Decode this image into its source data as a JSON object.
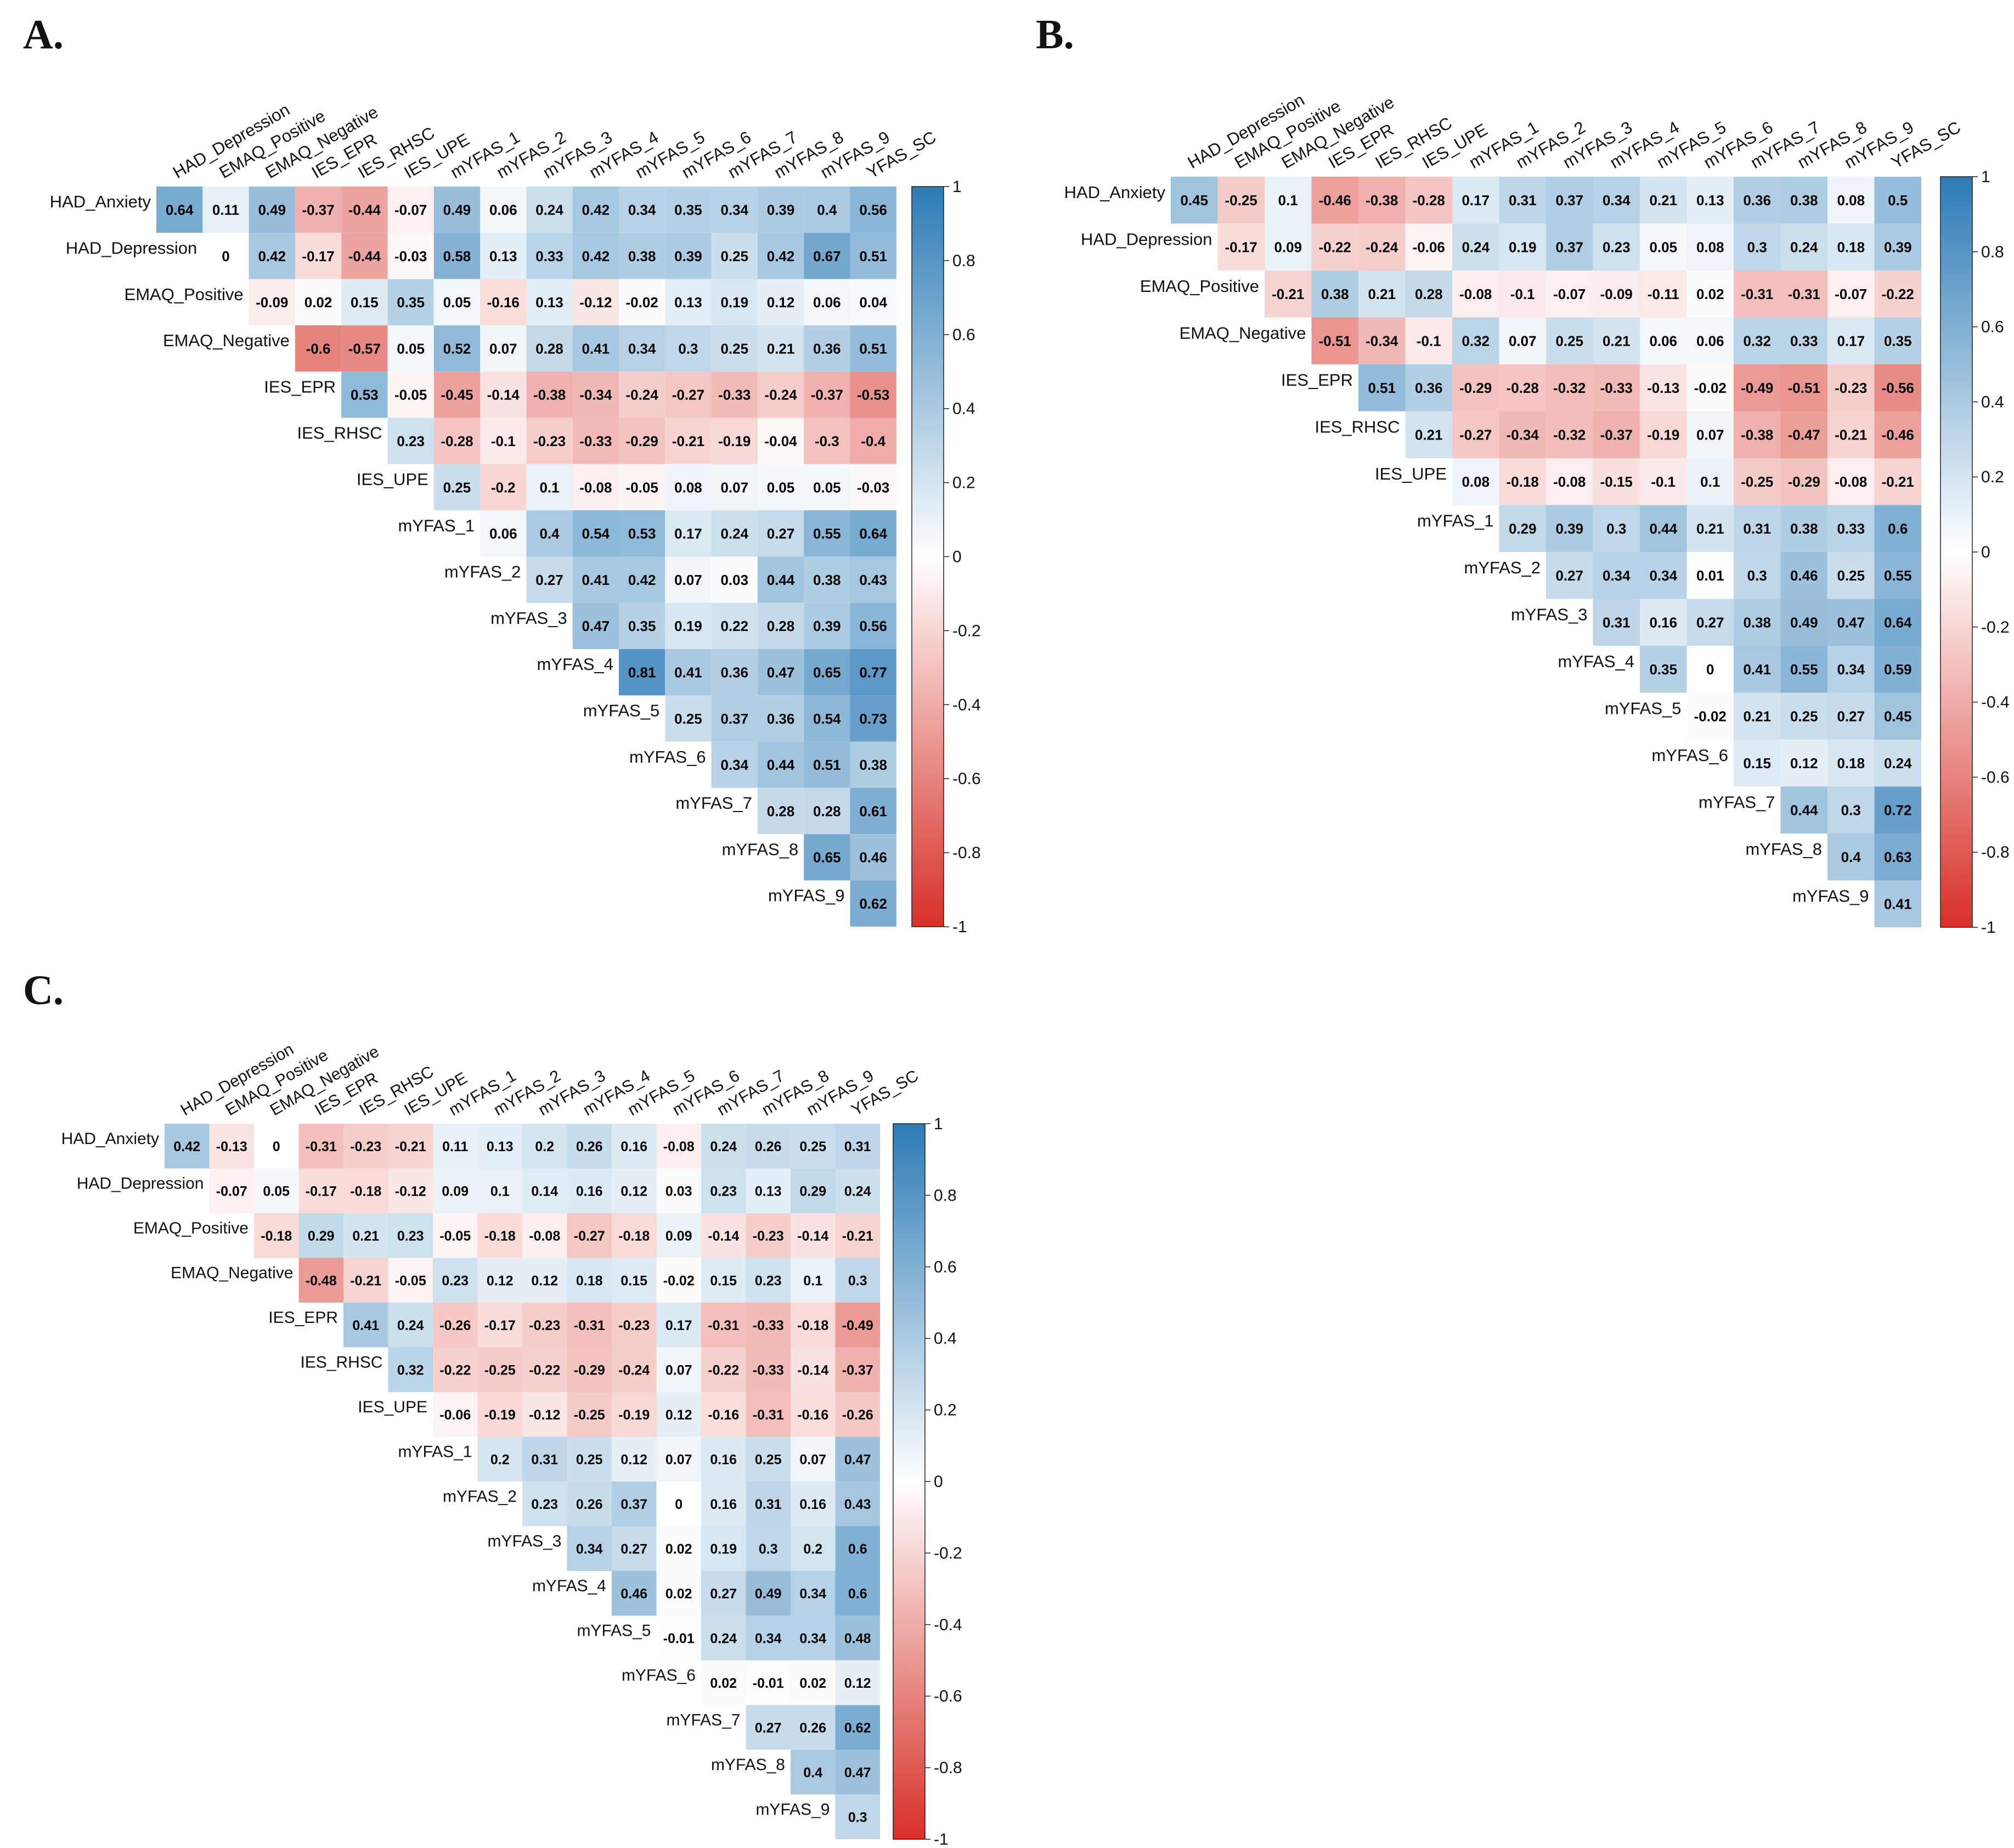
{
  "panels": [
    "A.",
    "B.",
    "C."
  ],
  "colors": {
    "negative": "#d73027",
    "neutral": "#ffffff",
    "positive": "#2c7bb6",
    "text": "#000000"
  },
  "chart_data": [
    {
      "type": "heatmap",
      "panel": "A.",
      "title": "",
      "row_labels": [
        "HAD_Anxiety",
        "HAD_Depression",
        "EMAQ_Positive",
        "EMAQ_Negative",
        "IES_EPR",
        "IES_RHSC",
        "IES_UPE",
        "mYFAS_1",
        "mYFAS_2",
        "mYFAS_3",
        "mYFAS_4",
        "mYFAS_5",
        "mYFAS_6",
        "mYFAS_7",
        "mYFAS_8",
        "mYFAS_9"
      ],
      "col_labels": [
        "HAD_Depression",
        "EMAQ_Positive",
        "EMAQ_Negative",
        "IES_EPR",
        "IES_RHSC",
        "IES_UPE",
        "mYFAS_1",
        "mYFAS_2",
        "mYFAS_3",
        "mYFAS_4",
        "mYFAS_5",
        "mYFAS_6",
        "mYFAS_7",
        "mYFAS_8",
        "mYFAS_9",
        "YFAS_SC"
      ],
      "values": [
        [
          0.64,
          0.11,
          0.49,
          -0.37,
          -0.44,
          -0.07,
          0.49,
          0.06,
          0.24,
          0.42,
          0.34,
          0.35,
          0.34,
          0.39,
          0.4,
          0.56
        ],
        [
          0,
          0.42,
          -0.17,
          -0.44,
          -0.03,
          0.58,
          0.13,
          0.33,
          0.42,
          0.38,
          0.39,
          0.25,
          0.42,
          0.67,
          0.51
        ],
        [
          -0.09,
          0.02,
          0.15,
          0.35,
          0.05,
          -0.16,
          0.13,
          -0.12,
          -0.02,
          0.13,
          0.19,
          0.12,
          0.06,
          0.04
        ],
        [
          -0.6,
          -0.57,
          0.05,
          0.52,
          0.07,
          0.28,
          0.41,
          0.34,
          0.3,
          0.25,
          0.21,
          0.36,
          0.51
        ],
        [
          0.53,
          -0.05,
          -0.45,
          -0.14,
          -0.38,
          -0.34,
          -0.24,
          -0.27,
          -0.33,
          -0.24,
          -0.37,
          -0.53
        ],
        [
          0.23,
          -0.28,
          -0.1,
          -0.23,
          -0.33,
          -0.29,
          -0.21,
          -0.19,
          -0.04,
          -0.3,
          -0.4
        ],
        [
          0.25,
          -0.2,
          0.1,
          -0.08,
          -0.05,
          0.08,
          0.07,
          0.05,
          0.05,
          -0.03
        ],
        [
          0.06,
          0.4,
          0.54,
          0.53,
          0.17,
          0.24,
          0.27,
          0.55,
          0.64
        ],
        [
          0.27,
          0.41,
          0.42,
          0.07,
          0.03,
          0.44,
          0.38,
          0.43
        ],
        [
          0.47,
          0.35,
          0.19,
          0.22,
          0.28,
          0.39,
          0.56
        ],
        [
          0.81,
          0.41,
          0.36,
          0.47,
          0.65,
          0.77
        ],
        [
          0.25,
          0.37,
          0.36,
          0.54,
          0.73
        ],
        [
          0.34,
          0.44,
          0.51,
          0.38
        ],
        [
          0.28,
          0.28,
          0.61
        ],
        [
          0.65,
          0.46
        ],
        [
          0.62
        ]
      ],
      "colorbar": {
        "range": [
          -1,
          1
        ],
        "ticks": [
          "1",
          "0.8",
          "0.6",
          "0.4",
          "0.2",
          "0",
          "-0.2",
          "-0.4",
          "-0.6",
          "-0.8",
          "-1"
        ]
      }
    },
    {
      "type": "heatmap",
      "panel": "B.",
      "title": "",
      "row_labels": [
        "HAD_Anxiety",
        "HAD_Depression",
        "EMAQ_Positive",
        "EMAQ_Negative",
        "IES_EPR",
        "IES_RHSC",
        "IES_UPE",
        "mYFAS_1",
        "mYFAS_2",
        "mYFAS_3",
        "mYFAS_4",
        "mYFAS_5",
        "mYFAS_6",
        "mYFAS_7",
        "mYFAS_8",
        "mYFAS_9"
      ],
      "col_labels": [
        "HAD_Depression",
        "EMAQ_Positive",
        "EMAQ_Negative",
        "IES_EPR",
        "IES_RHSC",
        "IES_UPE",
        "mYFAS_1",
        "mYFAS_2",
        "mYFAS_3",
        "mYFAS_4",
        "mYFAS_5",
        "mYFAS_6",
        "mYFAS_7",
        "mYFAS_8",
        "mYFAS_9",
        "YFAS_SC"
      ],
      "values": [
        [
          0.45,
          -0.25,
          0.1,
          -0.46,
          -0.38,
          -0.28,
          0.17,
          0.31,
          0.37,
          0.34,
          0.21,
          0.13,
          0.36,
          0.38,
          0.08,
          0.5
        ],
        [
          -0.17,
          0.09,
          -0.22,
          -0.24,
          -0.06,
          0.24,
          0.19,
          0.37,
          0.23,
          0.05,
          0.08,
          0.3,
          0.24,
          0.18,
          0.39
        ],
        [
          -0.21,
          0.38,
          0.21,
          0.28,
          -0.08,
          -0.1,
          -0.07,
          -0.09,
          -0.11,
          0.02,
          -0.31,
          -0.31,
          -0.07,
          -0.22
        ],
        [
          -0.51,
          -0.34,
          -0.1,
          0.32,
          0.07,
          0.25,
          0.21,
          0.06,
          0.06,
          0.32,
          0.33,
          0.17,
          0.35
        ],
        [
          0.51,
          0.36,
          -0.29,
          -0.28,
          -0.32,
          -0.33,
          -0.13,
          -0.02,
          -0.49,
          -0.51,
          -0.23,
          -0.56
        ],
        [
          0.21,
          -0.27,
          -0.34,
          -0.32,
          -0.37,
          -0.19,
          0.07,
          -0.38,
          -0.47,
          -0.21,
          -0.46
        ],
        [
          0.08,
          -0.18,
          -0.08,
          -0.15,
          -0.1,
          0.1,
          -0.25,
          -0.29,
          -0.08,
          -0.21
        ],
        [
          0.29,
          0.39,
          0.3,
          0.44,
          0.21,
          0.31,
          0.38,
          0.33,
          0.6
        ],
        [
          0.27,
          0.34,
          0.34,
          0.01,
          0.3,
          0.46,
          0.25,
          0.55
        ],
        [
          0.31,
          0.16,
          0.27,
          0.38,
          0.49,
          0.47,
          0.64
        ],
        [
          0.35,
          0,
          0.41,
          0.55,
          0.34,
          0.59
        ],
        [
          -0.02,
          0.21,
          0.25,
          0.27,
          0.45
        ],
        [
          0.15,
          0.12,
          0.18,
          0.24
        ],
        [
          0.44,
          0.3,
          0.72
        ],
        [
          0.4,
          0.63
        ],
        [
          0.41
        ]
      ],
      "colorbar": {
        "range": [
          -1,
          1
        ],
        "ticks": [
          "1",
          "0.8",
          "0.6",
          "0.4",
          "0.2",
          "0",
          "-0.2",
          "-0.4",
          "-0.6",
          "-0.8",
          "-1"
        ]
      }
    },
    {
      "type": "heatmap",
      "panel": "C.",
      "title": "",
      "row_labels": [
        "HAD_Anxiety",
        "HAD_Depression",
        "EMAQ_Positive",
        "EMAQ_Negative",
        "IES_EPR",
        "IES_RHSC",
        "IES_UPE",
        "mYFAS_1",
        "mYFAS_2",
        "mYFAS_3",
        "mYFAS_4",
        "mYFAS_5",
        "mYFAS_6",
        "mYFAS_7",
        "mYFAS_8",
        "mYFAS_9"
      ],
      "col_labels": [
        "HAD_Depression",
        "EMAQ_Positive",
        "EMAQ_Negative",
        "IES_EPR",
        "IES_RHSC",
        "IES_UPE",
        "mYFAS_1",
        "mYFAS_2",
        "mYFAS_3",
        "mYFAS_4",
        "mYFAS_5",
        "mYFAS_6",
        "mYFAS_7",
        "mYFAS_8",
        "mYFAS_9",
        "YFAS_SC"
      ],
      "values": [
        [
          0.42,
          -0.13,
          0,
          -0.31,
          -0.23,
          -0.21,
          0.11,
          0.13,
          0.2,
          0.26,
          0.16,
          -0.08,
          0.24,
          0.26,
          0.25,
          0.31
        ],
        [
          -0.07,
          0.05,
          -0.17,
          -0.18,
          -0.12,
          0.09,
          0.1,
          0.14,
          0.16,
          0.12,
          0.03,
          0.23,
          0.13,
          0.29,
          0.24
        ],
        [
          -0.18,
          0.29,
          0.21,
          0.23,
          -0.05,
          -0.18,
          -0.08,
          -0.27,
          -0.18,
          0.09,
          -0.14,
          -0.23,
          -0.14,
          -0.21
        ],
        [
          -0.48,
          -0.21,
          -0.05,
          0.23,
          0.12,
          0.12,
          0.18,
          0.15,
          -0.02,
          0.15,
          0.23,
          0.1,
          0.3
        ],
        [
          0.41,
          0.24,
          -0.26,
          -0.17,
          -0.23,
          -0.31,
          -0.23,
          0.17,
          -0.31,
          -0.33,
          -0.18,
          -0.49
        ],
        [
          0.32,
          -0.22,
          -0.25,
          -0.22,
          -0.29,
          -0.24,
          0.07,
          -0.22,
          -0.33,
          -0.14,
          -0.37
        ],
        [
          -0.06,
          -0.19,
          -0.12,
          -0.25,
          -0.19,
          0.12,
          -0.16,
          -0.31,
          -0.16,
          -0.26
        ],
        [
          0.2,
          0.31,
          0.25,
          0.12,
          0.07,
          0.16,
          0.25,
          0.07,
          0.47
        ],
        [
          0.23,
          0.26,
          0.37,
          0,
          0.16,
          0.31,
          0.16,
          0.43
        ],
        [
          0.34,
          0.27,
          0.02,
          0.19,
          0.3,
          0.2,
          0.6
        ],
        [
          0.46,
          0.02,
          0.27,
          0.49,
          0.34,
          0.6
        ],
        [
          -0.01,
          0.24,
          0.34,
          0.34,
          0.48
        ],
        [
          0.02,
          -0.01,
          0.02,
          0.12
        ],
        [
          0.27,
          0.26,
          0.62
        ],
        [
          0.4,
          0.47
        ],
        [
          0.3
        ]
      ],
      "colorbar": {
        "range": [
          -1,
          1
        ],
        "ticks": [
          "1",
          "0.8",
          "0.6",
          "0.4",
          "0.2",
          "0",
          "-0.2",
          "-0.4",
          "-0.6",
          "-0.8",
          "-1"
        ]
      }
    }
  ]
}
